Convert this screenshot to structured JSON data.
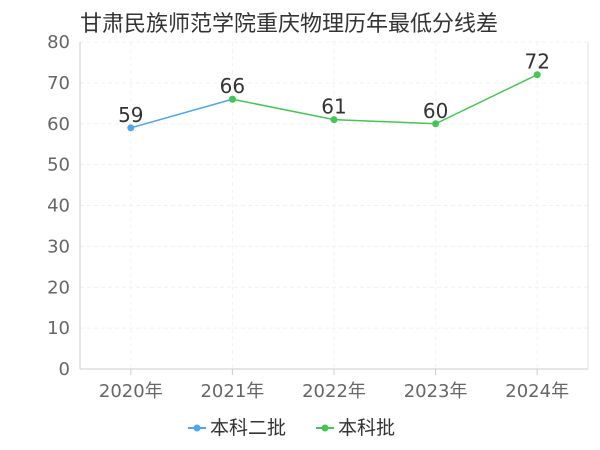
{
  "chart_data": {
    "type": "line",
    "title": "甘肃民族师范学院重庆物理历年最低分线差",
    "categories": [
      "2020年",
      "2021年",
      "2022年",
      "2023年",
      "2024年"
    ],
    "ylim": [
      0,
      80
    ],
    "yticks": [
      0,
      10,
      20,
      30,
      40,
      50,
      60,
      70,
      80
    ],
    "grid": true,
    "legend_position": "bottom",
    "series": [
      {
        "name": "本科二批",
        "color": "#4da6f0",
        "values": [
          59,
          66,
          null,
          null,
          null
        ]
      },
      {
        "name": "本科批",
        "color": "#44c655",
        "values": [
          null,
          66,
          61,
          60,
          72
        ]
      }
    ],
    "data_labels": [
      {
        "category": "2020年",
        "value": 59
      },
      {
        "category": "2021年",
        "value": 66
      },
      {
        "category": "2022年",
        "value": 61
      },
      {
        "category": "2023年",
        "value": 60
      },
      {
        "category": "2024年",
        "value": 72
      }
    ]
  }
}
